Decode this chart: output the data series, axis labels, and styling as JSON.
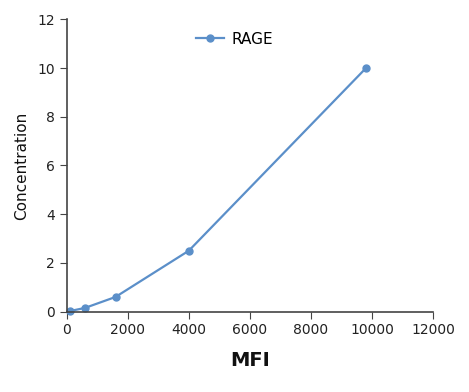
{
  "x": [
    100,
    600,
    1600,
    4000,
    9800
  ],
  "y": [
    0.02,
    0.15,
    0.6,
    2.5,
    10.0
  ],
  "line_color": "#5b8fc9",
  "marker": "o",
  "marker_size": 5,
  "label": "RAGE",
  "xlabel": "MFI",
  "ylabel": "Concentration",
  "xlim": [
    0,
    12000
  ],
  "ylim": [
    0,
    12
  ],
  "xticks": [
    0,
    2000,
    4000,
    6000,
    8000,
    10000,
    12000
  ],
  "yticks": [
    0,
    2,
    4,
    6,
    8,
    10,
    12
  ],
  "xlabel_fontsize": 14,
  "ylabel_fontsize": 11,
  "tick_fontsize": 10,
  "legend_fontsize": 11,
  "background_color": "#ffffff",
  "tick_color": "#222222",
  "spine_color": "#444444"
}
